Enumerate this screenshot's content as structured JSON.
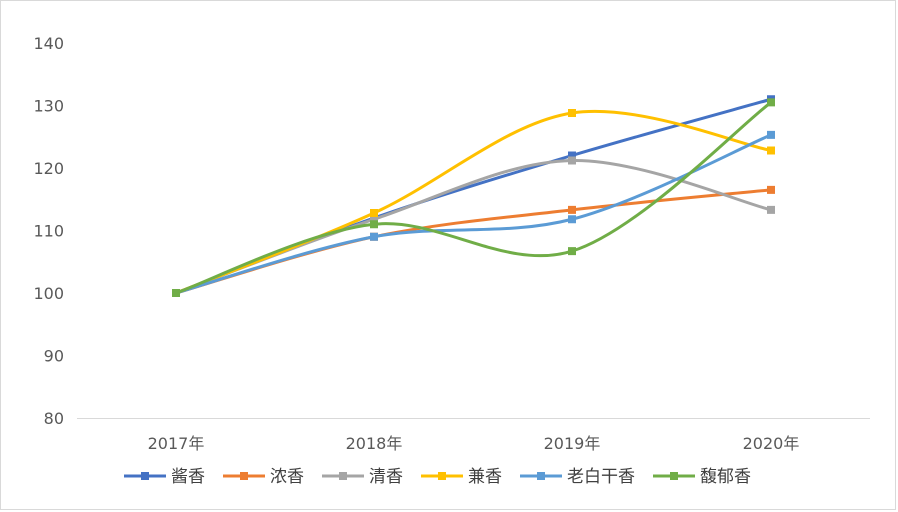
{
  "chart_data": {
    "type": "line",
    "title": "",
    "xlabel": "",
    "ylabel": "",
    "categories": [
      "2017年",
      "2018年",
      "2019年",
      "2020年"
    ],
    "ylim": [
      80,
      140
    ],
    "yticks": [
      80,
      90,
      100,
      110,
      120,
      130,
      140
    ],
    "smooth": true,
    "grid": false,
    "legend": "bottom",
    "series": [
      {
        "name": "酱香",
        "color": "#4472C4",
        "values": [
          100,
          112,
          122,
          131
        ]
      },
      {
        "name": "浓香",
        "color": "#ED7D31",
        "values": [
          100,
          109,
          113.3,
          116.5
        ]
      },
      {
        "name": "清香",
        "color": "#A5A5A5",
        "values": [
          100,
          111.8,
          121.2,
          113.3
        ]
      },
      {
        "name": "兼香",
        "color": "#FFC000",
        "values": [
          100,
          112.8,
          128.8,
          122.8
        ]
      },
      {
        "name": "老白干香",
        "color": "#5B9BD5",
        "values": [
          100,
          109,
          111.8,
          125.3
        ]
      },
      {
        "name": "馥郁香",
        "color": "#70AD47",
        "values": [
          100,
          111,
          106.7,
          130.5
        ]
      }
    ]
  }
}
